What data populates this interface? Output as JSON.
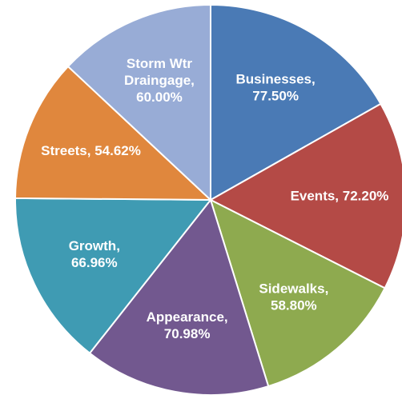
{
  "chart_data": {
    "type": "pie",
    "values": [
      77.5,
      72.2,
      58.8,
      70.98,
      66.96,
      54.62,
      60.0
    ],
    "value_labels": [
      "Businesses,\n77.50%",
      "Events, 72.20%",
      "Sidewalks,\n58.80%",
      "Appearance,\n70.98%",
      "Growth,\n66.96%",
      "Streets, 54.62%",
      "Storm Wtr\nDraingage,\n60.00%"
    ],
    "colors": [
      "#4a7ab5",
      "#b44a46",
      "#8eaa4f",
      "#72588f",
      "#3f9bb3",
      "#e0873d",
      "#98acd6"
    ]
  }
}
